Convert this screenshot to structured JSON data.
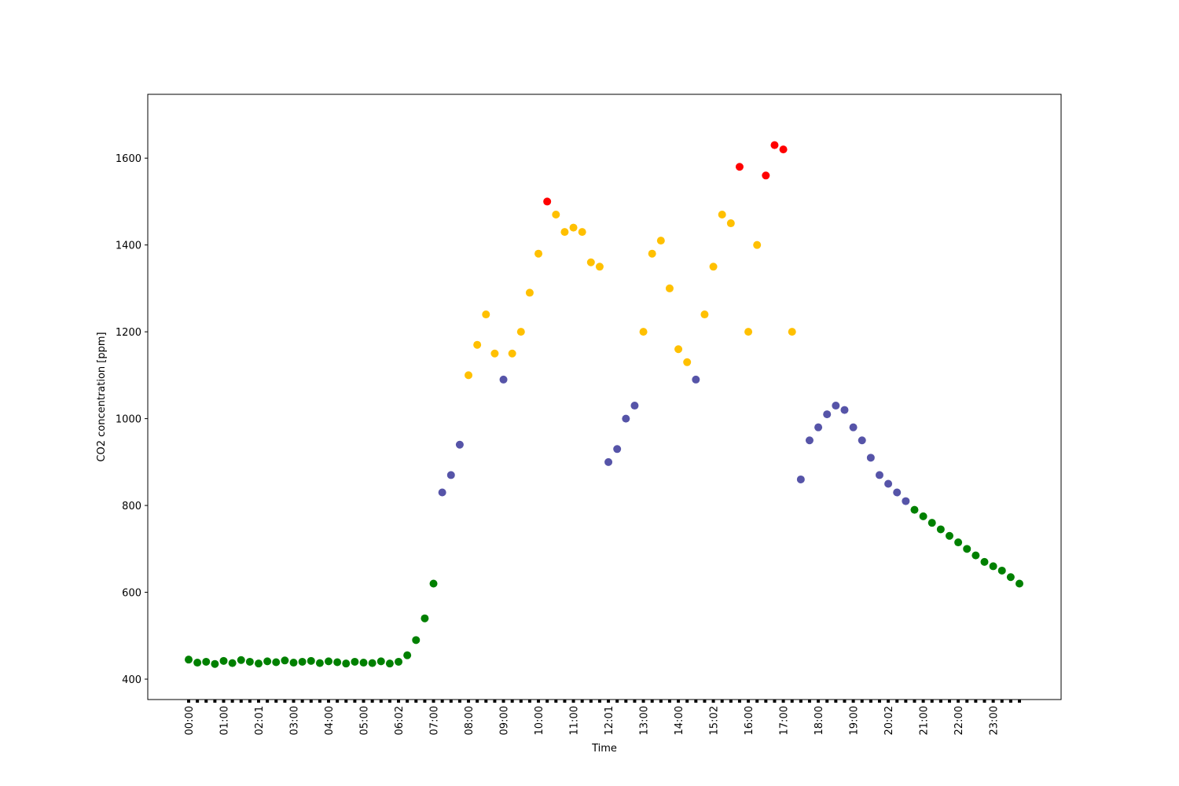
{
  "chart_data": {
    "type": "scatter",
    "x_label": "Time",
    "y_label": "CO2 concentration [ppm]",
    "categories": [
      "00:00",
      null,
      null,
      null,
      "01:00",
      null,
      null,
      null,
      "02:01",
      null,
      null,
      null,
      "03:00",
      null,
      null,
      null,
      "04:00",
      null,
      null,
      null,
      "05:00",
      null,
      null,
      null,
      "06:02",
      null,
      null,
      null,
      "07:00",
      null,
      null,
      null,
      "08:00",
      null,
      null,
      null,
      "09:00",
      null,
      null,
      null,
      "10:00",
      null,
      null,
      null,
      "11:00",
      null,
      null,
      null,
      "12:01",
      null,
      null,
      null,
      "13:00",
      null,
      null,
      null,
      "14:00",
      null,
      null,
      null,
      "15:02",
      null,
      null,
      null,
      "16:00",
      null,
      null,
      null,
      "17:00",
      null,
      null,
      null,
      "18:00",
      null,
      null,
      null,
      "19:00",
      null,
      null,
      null,
      "20:02",
      null,
      null,
      null,
      "21:00",
      null,
      null,
      null,
      "22:00",
      null,
      null,
      null,
      "23:00",
      null,
      null,
      null
    ],
    "values": [
      445,
      438,
      440,
      435,
      442,
      437,
      444,
      440,
      436,
      441,
      439,
      443,
      438,
      440,
      442,
      437,
      441,
      439,
      436,
      440,
      438,
      437,
      441,
      436,
      440,
      455,
      490,
      540,
      620,
      830,
      870,
      940,
      1100,
      1170,
      1240,
      1150,
      1090,
      1150,
      1200,
      1290,
      1380,
      1500,
      1470,
      1430,
      1440,
      1430,
      1360,
      1350,
      900,
      930,
      1000,
      1030,
      1200,
      1380,
      1410,
      1300,
      1160,
      1130,
      1090,
      1240,
      1350,
      1470,
      1450,
      1580,
      1200,
      1400,
      1560,
      1630,
      1620,
      1200,
      860,
      950,
      980,
      1010,
      1030,
      1020,
      980,
      950,
      910,
      870,
      850,
      830,
      810,
      790,
      775,
      760,
      745,
      730,
      715,
      700,
      685,
      670,
      660,
      650,
      635,
      620
    ],
    "colors": [
      "#008000",
      "#008000",
      "#008000",
      "#008000",
      "#008000",
      "#008000",
      "#008000",
      "#008000",
      "#008000",
      "#008000",
      "#008000",
      "#008000",
      "#008000",
      "#008000",
      "#008000",
      "#008000",
      "#008000",
      "#008000",
      "#008000",
      "#008000",
      "#008000",
      "#008000",
      "#008000",
      "#008000",
      "#008000",
      "#008000",
      "#008000",
      "#008000",
      "#008000",
      "#5654a8",
      "#5654a8",
      "#5654a8",
      "#ffc000",
      "#ffc000",
      "#ffc000",
      "#ffc000",
      "#5654a8",
      "#ffc000",
      "#ffc000",
      "#ffc000",
      "#ffc000",
      "#ff0000",
      "#ffc000",
      "#ffc000",
      "#ffc000",
      "#ffc000",
      "#ffc000",
      "#ffc000",
      "#5654a8",
      "#5654a8",
      "#5654a8",
      "#5654a8",
      "#ffc000",
      "#ffc000",
      "#ffc000",
      "#ffc000",
      "#ffc000",
      "#ffc000",
      "#5654a8",
      "#ffc000",
      "#ffc000",
      "#ffc000",
      "#ffc000",
      "#ff0000",
      "#ffc000",
      "#ffc000",
      "#ff0000",
      "#ff0000",
      "#ff0000",
      "#ffc000",
      "#5654a8",
      "#5654a8",
      "#5654a8",
      "#5654a8",
      "#5654a8",
      "#5654a8",
      "#5654a8",
      "#5654a8",
      "#5654a8",
      "#5654a8",
      "#5654a8",
      "#5654a8",
      "#5654a8",
      "#008000",
      "#008000",
      "#008000",
      "#008000",
      "#008000",
      "#008000",
      "#008000",
      "#008000",
      "#008000",
      "#008000",
      "#008000",
      "#008000",
      "#008000"
    ],
    "ylim": [
      353,
      1747
    ],
    "yticks": [
      400,
      600,
      800,
      1000,
      1200,
      1400,
      1600
    ]
  }
}
